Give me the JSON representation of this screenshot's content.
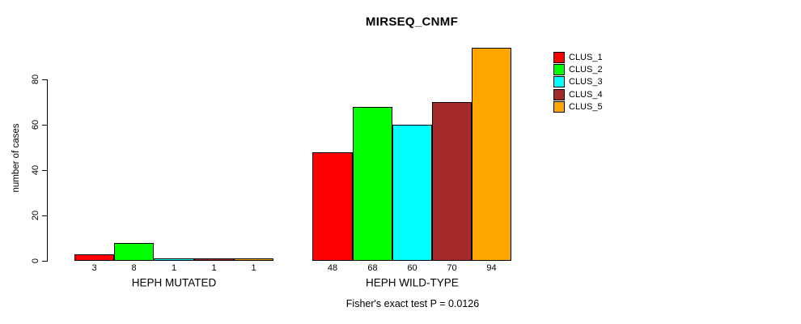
{
  "chart_data": {
    "type": "bar",
    "title": "MIRSEQ_CNMF",
    "ylabel": "number of cases",
    "xlabel": "",
    "categories": [
      "HEPH MUTATED",
      "HEPH WILD-TYPE"
    ],
    "series": [
      {
        "name": "CLUS_1",
        "color": "#FF0000",
        "values": [
          3,
          48
        ]
      },
      {
        "name": "CLUS_2",
        "color": "#00FF00",
        "values": [
          8,
          68
        ]
      },
      {
        "name": "CLUS_3",
        "color": "#00FFFF",
        "values": [
          1,
          60
        ]
      },
      {
        "name": "CLUS_4",
        "color": "#A52A2A",
        "values": [
          1,
          70
        ]
      },
      {
        "name": "CLUS_5",
        "color": "#FFA500",
        "values": [
          1,
          94
        ]
      }
    ],
    "bar_value_labels": [
      [
        "3",
        "8",
        "1",
        "1",
        "1"
      ],
      [
        "48",
        "68",
        "60",
        "70",
        "94"
      ]
    ],
    "yticks": [
      "0",
      "20",
      "40",
      "60",
      "80"
    ],
    "ytick_values": [
      0,
      20,
      40,
      60,
      80
    ],
    "ylim": [
      0,
      94
    ],
    "grid": false,
    "legend_position": "right-inside",
    "legend": [
      "CLUS_1",
      "CLUS_2",
      "CLUS_3",
      "CLUS_4",
      "CLUS_5"
    ],
    "annotation": "Fisher's exact test P = 0.0126",
    "axis_color": "#000000",
    "background_color": "#FFFFFF"
  }
}
